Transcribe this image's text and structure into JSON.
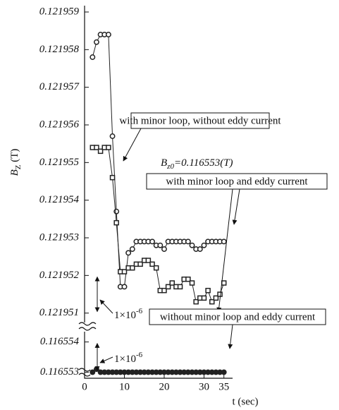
{
  "chart_data": {
    "type": "line",
    "ylabel": {
      "main": "B",
      "sub": "Z",
      "unit": " (T)"
    },
    "xlabel": "t (sec)",
    "x": [
      2,
      3,
      4,
      5,
      6,
      7,
      8,
      9,
      10,
      11,
      12,
      13,
      14,
      15,
      16,
      17,
      18,
      19,
      20,
      21,
      22,
      23,
      24,
      25,
      26,
      27,
      28,
      29,
      30,
      31,
      32,
      33,
      34,
      35
    ],
    "series": [
      {
        "name": "with minor loop, without eddy current",
        "color": "#222222",
        "marker": "circle-open",
        "values": [
          0.1219578,
          0.1219582,
          0.1219584,
          0.1219584,
          0.1219584,
          0.1219557,
          0.1219537,
          0.1219517,
          0.1219517,
          0.1219526,
          0.1219527,
          0.1219529,
          0.1219529,
          0.1219529,
          0.1219529,
          0.1219529,
          0.1219528,
          0.1219528,
          0.1219527,
          0.1219529,
          0.1219529,
          0.1219529,
          0.1219529,
          0.1219529,
          0.1219529,
          0.1219528,
          0.1219527,
          0.1219527,
          0.1219528,
          0.1219529,
          0.1219529,
          0.1219529,
          0.1219529,
          0.1219529
        ]
      },
      {
        "name": "with minor loop and eddy current",
        "color": "#222222",
        "marker": "square-open",
        "values": [
          0.1219554,
          0.1219554,
          0.1219553,
          0.1219554,
          0.1219554,
          0.1219546,
          0.1219534,
          0.1219521,
          0.1219521,
          0.1219522,
          0.1219522,
          0.1219523,
          0.1219523,
          0.1219524,
          0.1219524,
          0.1219523,
          0.1219522,
          0.1219516,
          0.1219516,
          0.1219517,
          0.1219518,
          0.1219517,
          0.1219517,
          0.1219519,
          0.1219519,
          0.1219518,
          0.1219513,
          0.1219514,
          0.1219514,
          0.1219516,
          0.1219513,
          0.1219514,
          0.1219515,
          0.1219518
        ]
      },
      {
        "name": "without minor loop and eddy current",
        "color": "#222222",
        "marker": "circle-filled",
        "axis": "y2",
        "values": [
          0.116553,
          0.1165531,
          0.116553,
          0.116553,
          0.116553,
          0.116553,
          0.116553,
          0.116553,
          0.116553,
          0.116553,
          0.116553,
          0.116553,
          0.116553,
          0.116553,
          0.116553,
          0.116553,
          0.116553,
          0.116553,
          0.116553,
          0.116553,
          0.116553,
          0.116553,
          0.116553,
          0.116553,
          0.116553,
          0.116553,
          0.116553,
          0.116553,
          0.116553,
          0.116553,
          0.116553,
          0.116553,
          0.116553,
          0.116553
        ]
      }
    ],
    "xlim": [
      0,
      37
    ],
    "xticks": [
      0,
      10,
      20,
      30,
      35
    ],
    "ylim": [
      0.12195075,
      0.121959
    ],
    "yticks": [
      0.121951,
      0.121952,
      0.121953,
      0.121954,
      0.121955,
      0.121956,
      0.121957,
      0.121958,
      0.121959
    ],
    "y2lim": [
      0.1165528,
      0.1165542
    ],
    "y2ticks": [
      0.116553,
      0.116554
    ],
    "annotations": {
      "bz0": {
        "main": "B",
        "sub": "z0",
        "rest": "=0.116553(T)"
      },
      "scale_upper": {
        "main": "1×10",
        "sup": "-6"
      },
      "scale_lower": {
        "main": "1×10",
        "sup": "-6"
      }
    }
  }
}
